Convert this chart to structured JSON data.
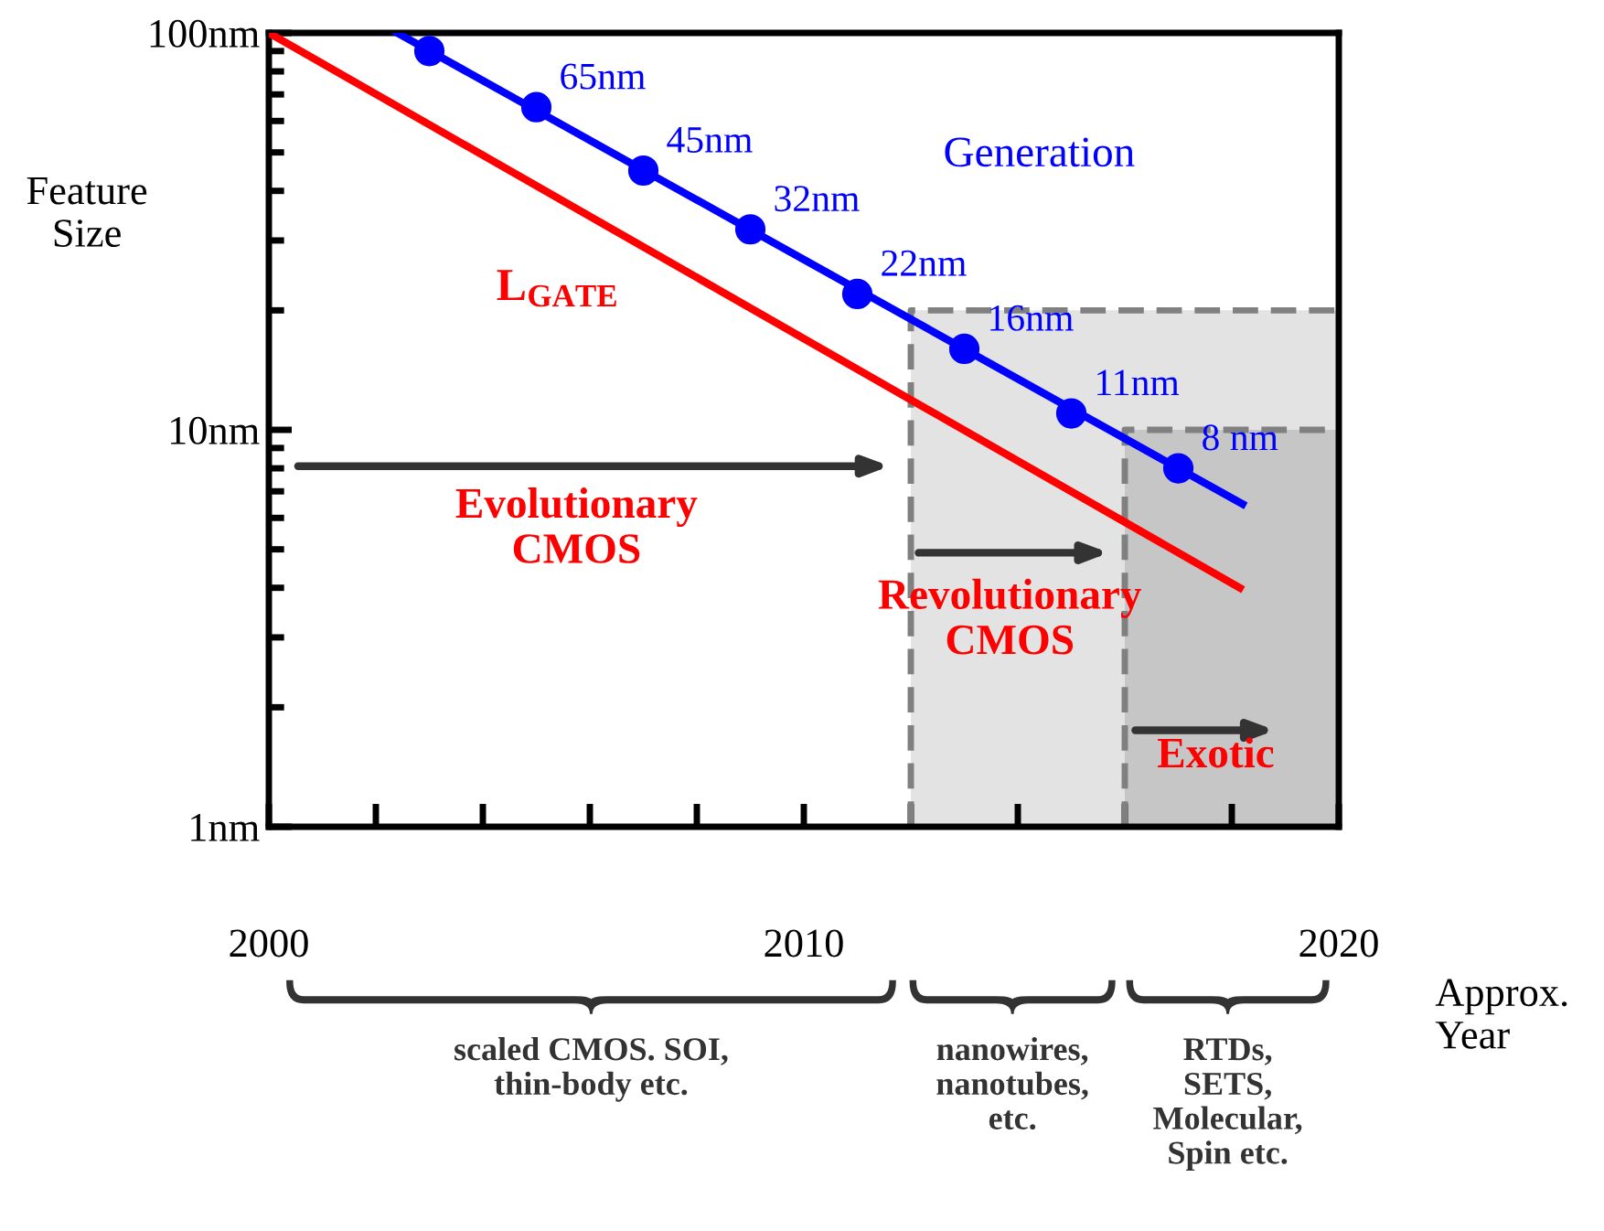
{
  "chart_data": {
    "type": "line",
    "xlabel": "Approx.\nYear",
    "ylabel": "Feature\nSize",
    "log": "y",
    "xlim": [
      2000,
      2020
    ],
    "ylim": [
      1,
      100
    ],
    "xticks": [
      2000,
      {
        "value": 2002,
        "label": null
      },
      {
        "value": 2004,
        "label": null
      },
      {
        "value": 2006,
        "label": null
      },
      {
        "value": 2008,
        "label": null
      },
      2010,
      {
        "value": 2012,
        "label": null
      },
      {
        "value": 2014,
        "label": null
      },
      {
        "value": 2016,
        "label": null
      },
      {
        "value": 2018,
        "label": null
      },
      2020
    ],
    "yticks": [
      {
        "value": 1,
        "label": "1nm"
      },
      {
        "value": 10,
        "label": "10nm"
      },
      {
        "value": 100,
        "label": "100nm"
      }
    ],
    "series": [
      {
        "type": "area",
        "color": "#e3e3e3",
        "line_style": "dashed",
        "x": [
          2012,
          2020
        ],
        "values": [
          20,
          20
        ]
      },
      {
        "type": "area",
        "color": "#c6c6c6",
        "line_style": "dashed",
        "x": [
          2016,
          2020
        ],
        "values": [
          10,
          10
        ]
      },
      {
        "color": "#0000ff",
        "marker": "none",
        "x": [
          2002.4,
          2018.2
        ],
        "values": [
          100,
          6.5
        ]
      },
      {
        "name": "Generation",
        "type": "scatter",
        "color": "#0000ff",
        "marker": "circle",
        "x": [
          2003,
          2005,
          2007,
          2009,
          2011,
          2013,
          2015,
          2017
        ],
        "values": [
          90,
          65,
          45,
          32,
          22,
          16,
          11,
          8
        ],
        "value_labels": [
          null,
          "65nm",
          "45nm",
          "32nm",
          "22nm",
          "16nm",
          "11nm",
          "8 nm"
        ]
      },
      {
        "name": "L$_{GATE}$",
        "color": "#ff0000",
        "marker": "none",
        "x": [
          2000,
          2018.15
        ],
        "values": [
          100,
          4
        ]
      }
    ],
    "annotations": [
      "Evolutionary\nCMOS",
      "Revolutionary\nCMOS",
      "Exotic",
      "scaled CMOS. SOI,\nthin-body etc.",
      "nanowires,\nnanotubes,\netc.",
      "RTDs,\nSETS,\nMolecular,\nSpin etc."
    ],
    "grid": false,
    "legend": false
  }
}
